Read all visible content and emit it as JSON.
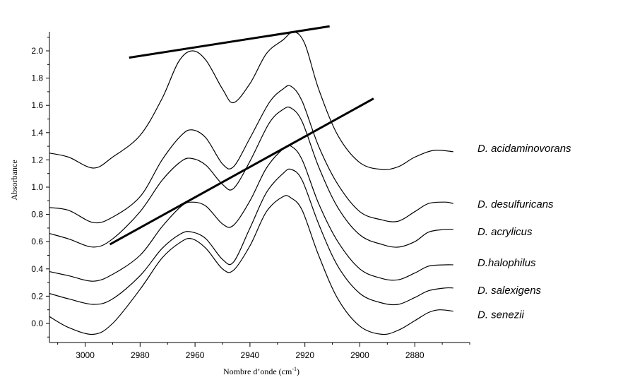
{
  "chart_data": {
    "type": "line",
    "title": "",
    "xlabel": "Nombre d’onde (cm",
    "xlabel_sup": "-1",
    "xlabel_close": ")",
    "ylabel": "Absorbance",
    "xlim": [
      3013,
      2860
    ],
    "ylim": [
      -0.14,
      2.14
    ],
    "x_reversed": true,
    "grid": false,
    "legend": "right, labels at curve ends",
    "x_ticks": [
      3000,
      2980,
      2960,
      2940,
      2920,
      2900,
      2880
    ],
    "y_ticks": [
      0.0,
      0.2,
      0.4,
      0.6,
      0.8,
      1.0,
      1.2,
      1.4,
      1.6,
      1.8,
      2.0
    ],
    "y_tick_labels": [
      "0.0",
      "0.2",
      "0.4",
      "0.6",
      "0.8",
      "1.0",
      "1.2",
      "1.4",
      "1.6",
      "1.8",
      "2.0"
    ],
    "series": [
      {
        "name": "D. acidaminovorans",
        "points": [
          [
            3013,
            1.25
          ],
          [
            3006,
            1.22
          ],
          [
            2997,
            1.14
          ],
          [
            2990,
            1.22
          ],
          [
            2980,
            1.38
          ],
          [
            2972,
            1.65
          ],
          [
            2966,
            1.92
          ],
          [
            2961,
            2.0
          ],
          [
            2956,
            1.93
          ],
          [
            2950,
            1.72
          ],
          [
            2946,
            1.62
          ],
          [
            2940,
            1.76
          ],
          [
            2934,
            1.98
          ],
          [
            2928,
            2.08
          ],
          [
            2924,
            2.14
          ],
          [
            2920,
            2.05
          ],
          [
            2915,
            1.72
          ],
          [
            2908,
            1.38
          ],
          [
            2900,
            1.18
          ],
          [
            2892,
            1.13
          ],
          [
            2886,
            1.15
          ],
          [
            2880,
            1.22
          ],
          [
            2873,
            1.27
          ],
          [
            2866,
            1.26
          ]
        ]
      },
      {
        "name": "D. desulfuricans",
        "points": [
          [
            3013,
            0.85
          ],
          [
            3006,
            0.83
          ],
          [
            2997,
            0.74
          ],
          [
            2990,
            0.78
          ],
          [
            2980,
            0.93
          ],
          [
            2972,
            1.2
          ],
          [
            2965,
            1.38
          ],
          [
            2961,
            1.42
          ],
          [
            2956,
            1.36
          ],
          [
            2950,
            1.17
          ],
          [
            2946,
            1.15
          ],
          [
            2940,
            1.36
          ],
          [
            2933,
            1.62
          ],
          [
            2928,
            1.72
          ],
          [
            2925,
            1.74
          ],
          [
            2921,
            1.63
          ],
          [
            2915,
            1.3
          ],
          [
            2908,
            1.02
          ],
          [
            2900,
            0.82
          ],
          [
            2892,
            0.76
          ],
          [
            2886,
            0.75
          ],
          [
            2880,
            0.82
          ],
          [
            2875,
            0.88
          ],
          [
            2869,
            0.89
          ],
          [
            2866,
            0.88
          ]
        ]
      },
      {
        "name": "D. acrylicus",
        "points": [
          [
            3013,
            0.66
          ],
          [
            3006,
            0.62
          ],
          [
            2997,
            0.56
          ],
          [
            2990,
            0.62
          ],
          [
            2980,
            0.82
          ],
          [
            2972,
            1.05
          ],
          [
            2965,
            1.19
          ],
          [
            2961,
            1.21
          ],
          [
            2956,
            1.16
          ],
          [
            2950,
            1.02
          ],
          [
            2946,
            0.99
          ],
          [
            2940,
            1.19
          ],
          [
            2933,
            1.47
          ],
          [
            2928,
            1.57
          ],
          [
            2925,
            1.58
          ],
          [
            2921,
            1.48
          ],
          [
            2915,
            1.15
          ],
          [
            2908,
            0.85
          ],
          [
            2900,
            0.65
          ],
          [
            2892,
            0.58
          ],
          [
            2886,
            0.56
          ],
          [
            2880,
            0.6
          ],
          [
            2875,
            0.67
          ],
          [
            2869,
            0.69
          ],
          [
            2866,
            0.69
          ]
        ]
      },
      {
        "name": "D.halophilus",
        "points": [
          [
            3013,
            0.38
          ],
          [
            3006,
            0.35
          ],
          [
            2997,
            0.31
          ],
          [
            2990,
            0.36
          ],
          [
            2980,
            0.5
          ],
          [
            2972,
            0.71
          ],
          [
            2965,
            0.86
          ],
          [
            2961,
            0.89
          ],
          [
            2956,
            0.86
          ],
          [
            2950,
            0.73
          ],
          [
            2946,
            0.72
          ],
          [
            2940,
            0.9
          ],
          [
            2934,
            1.14
          ],
          [
            2928,
            1.28
          ],
          [
            2925,
            1.3
          ],
          [
            2921,
            1.2
          ],
          [
            2915,
            0.88
          ],
          [
            2908,
            0.6
          ],
          [
            2900,
            0.4
          ],
          [
            2892,
            0.33
          ],
          [
            2886,
            0.32
          ],
          [
            2880,
            0.37
          ],
          [
            2875,
            0.42
          ],
          [
            2869,
            0.43
          ],
          [
            2866,
            0.43
          ]
        ]
      },
      {
        "name": "D. salexigens",
        "points": [
          [
            3013,
            0.22
          ],
          [
            3006,
            0.18
          ],
          [
            2997,
            0.14
          ],
          [
            2990,
            0.18
          ],
          [
            2980,
            0.35
          ],
          [
            2972,
            0.55
          ],
          [
            2965,
            0.66
          ],
          [
            2961,
            0.67
          ],
          [
            2956,
            0.62
          ],
          [
            2950,
            0.47
          ],
          [
            2946,
            0.45
          ],
          [
            2940,
            0.7
          ],
          [
            2934,
            0.96
          ],
          [
            2928,
            1.1
          ],
          [
            2925,
            1.13
          ],
          [
            2921,
            1.05
          ],
          [
            2915,
            0.73
          ],
          [
            2908,
            0.42
          ],
          [
            2900,
            0.22
          ],
          [
            2892,
            0.15
          ],
          [
            2886,
            0.14
          ],
          [
            2880,
            0.19
          ],
          [
            2875,
            0.24
          ],
          [
            2869,
            0.26
          ],
          [
            2866,
            0.26
          ]
        ]
      },
      {
        "name": "D. senezii",
        "points": [
          [
            3013,
            0.05
          ],
          [
            3006,
            -0.03
          ],
          [
            2997,
            -0.08
          ],
          [
            2990,
            0.0
          ],
          [
            2980,
            0.25
          ],
          [
            2972,
            0.48
          ],
          [
            2965,
            0.6
          ],
          [
            2961,
            0.62
          ],
          [
            2956,
            0.55
          ],
          [
            2950,
            0.4
          ],
          [
            2946,
            0.39
          ],
          [
            2940,
            0.57
          ],
          [
            2934,
            0.82
          ],
          [
            2928,
            0.93
          ],
          [
            2925,
            0.92
          ],
          [
            2921,
            0.83
          ],
          [
            2915,
            0.5
          ],
          [
            2908,
            0.18
          ],
          [
            2900,
            -0.02
          ],
          [
            2892,
            -0.08
          ],
          [
            2886,
            -0.05
          ],
          [
            2880,
            0.02
          ],
          [
            2875,
            0.08
          ],
          [
            2871,
            0.1
          ],
          [
            2866,
            0.09
          ]
        ]
      }
    ],
    "lines": [
      {
        "from": [
          2984,
          1.95
        ],
        "to": [
          2911,
          2.18
        ]
      },
      {
        "from": [
          2991,
          0.58
        ],
        "to": [
          2895,
          1.65
        ]
      }
    ]
  }
}
